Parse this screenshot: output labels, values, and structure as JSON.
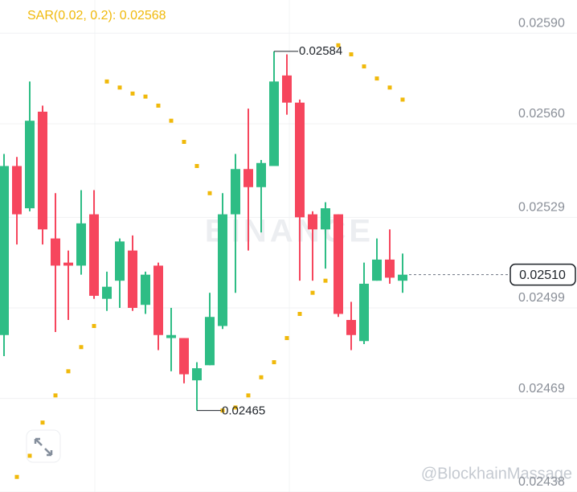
{
  "chart_data": {
    "type": "candlestick",
    "title": "SAR(0.02, 0.2): 0.02568",
    "watermark": "BINANCE",
    "credit": "@BlockhainMassage",
    "up_color": "#2ebd85",
    "down_color": "#f6465d",
    "open": [
      0.0249,
      0.02546,
      0.02532,
      0.02564,
      0.02522,
      0.02514,
      0.02513,
      0.0253,
      0.02502,
      0.02508,
      0.02518,
      0.025,
      0.02513,
      0.02489,
      0.02489,
      0.02475,
      0.0248,
      0.02493,
      0.0253,
      0.02545,
      0.02539,
      0.02546,
      0.02576,
      0.02567,
      0.0253,
      0.02525,
      0.0253,
      0.02495,
      0.02488,
      0.02508,
      0.02515,
      0.02508
    ],
    "high": [
      0.0255,
      0.02549,
      0.02574,
      0.02566,
      0.02537,
      0.02518,
      0.02538,
      0.02538,
      0.02511,
      0.02522,
      0.02523,
      0.02511,
      0.02514,
      0.02499,
      0.02489,
      0.02481,
      0.02504,
      0.02537,
      0.0255,
      0.02565,
      0.02548,
      0.02584,
      0.02583,
      0.02568,
      0.02531,
      0.02534,
      0.0253,
      0.02501,
      0.02514,
      0.02522,
      0.02525,
      0.02517
    ],
    "low": [
      0.02483,
      0.0252,
      0.02531,
      0.0252,
      0.02491,
      0.02495,
      0.0251,
      0.02502,
      0.02498,
      0.02499,
      0.02498,
      0.02497,
      0.02485,
      0.02478,
      0.02474,
      0.02465,
      0.0248,
      0.02492,
      0.02504,
      0.02518,
      0.02524,
      0.02546,
      0.02563,
      0.02508,
      0.02508,
      0.02512,
      0.02496,
      0.02485,
      0.02487,
      0.02508,
      0.02507,
      0.02504
    ],
    "close": [
      0.02546,
      0.0253,
      0.02561,
      0.02525,
      0.02513,
      0.02513,
      0.02527,
      0.02503,
      0.02506,
      0.02521,
      0.02499,
      0.0251,
      0.0249,
      0.0249,
      0.02477,
      0.02479,
      0.02496,
      0.0253,
      0.02545,
      0.02539,
      0.02547,
      0.02574,
      0.02567,
      0.02529,
      0.02525,
      0.02532,
      0.02497,
      0.0249,
      0.02507,
      0.02515,
      0.02509,
      0.0251
    ],
    "sar": {
      "color": "#f0b90b",
      "values": [
        null,
        0.02443,
        0.0245,
        0.02461,
        0.0247,
        0.02478,
        0.02486,
        0.02493,
        0.02574,
        0.02572,
        0.0257,
        0.02569,
        0.02566,
        0.02561,
        0.02554,
        0.02546,
        0.02537,
        0.02465,
        0.02466,
        0.0247,
        0.02476,
        0.02481,
        0.02489,
        0.02497,
        0.02504,
        0.02508,
        0.02586,
        0.02583,
        0.02579,
        0.02575,
        0.02572,
        0.02568
      ]
    },
    "annotations": [
      "0.02584",
      "0.02465"
    ],
    "current_price": {
      "value": 0.0251,
      "label": "0.02510"
    },
    "ylim": [
      0.02438,
      0.02601
    ],
    "yticks": [
      {
        "value": 0.0259,
        "label": "0.02590"
      },
      {
        "value": 0.0256,
        "label": "0.02560"
      },
      0.02529,
      0.02499,
      0.02469,
      0.02438
    ],
    "grid": true
  }
}
